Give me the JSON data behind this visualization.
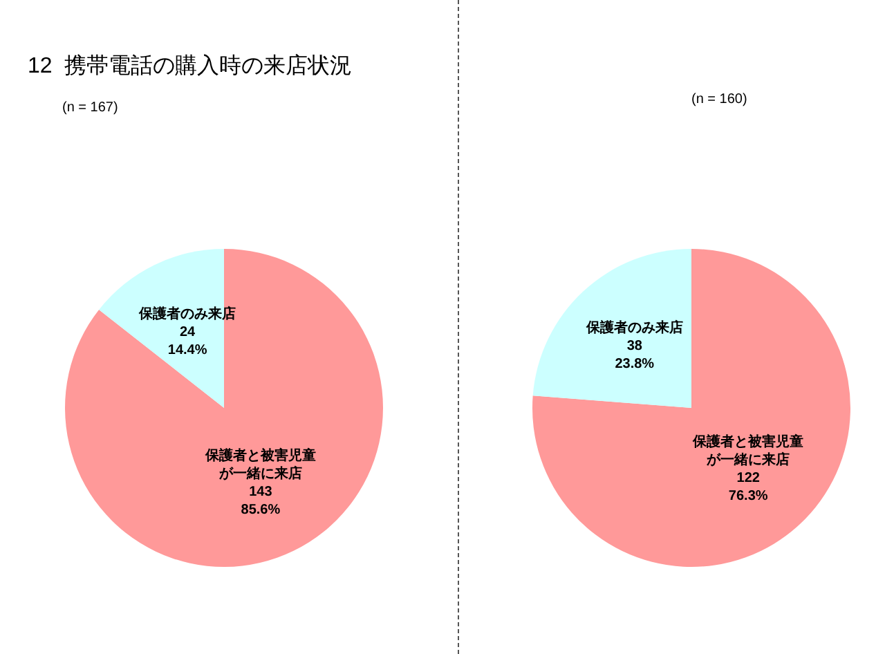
{
  "chart_data": [
    {
      "type": "pie",
      "title": "12  携帯電話の購入時の来店状況",
      "subtitle": "(n = 167)",
      "categories": [
        "保護者と被害児童が一緒に来店",
        "保護者のみ来店"
      ],
      "values": [
        85.6,
        14.4
      ],
      "colors": [
        "#ff9999",
        "#ccffff"
      ],
      "value_labels": [
        "143\n85.6%",
        "24\n14.4%"
      ]
    },
    {
      "type": "pie",
      "subtitle": "(n = 160)",
      "categories": [
        "保護者と被害児童が一緒に来店",
        "保護者のみ来店"
      ],
      "values": [
        76.3,
        23.8
      ],
      "colors": [
        "#ff9999",
        "#ccffff"
      ],
      "value_labels": [
        "122\n76.3%",
        "38\n23.8%"
      ]
    }
  ]
}
